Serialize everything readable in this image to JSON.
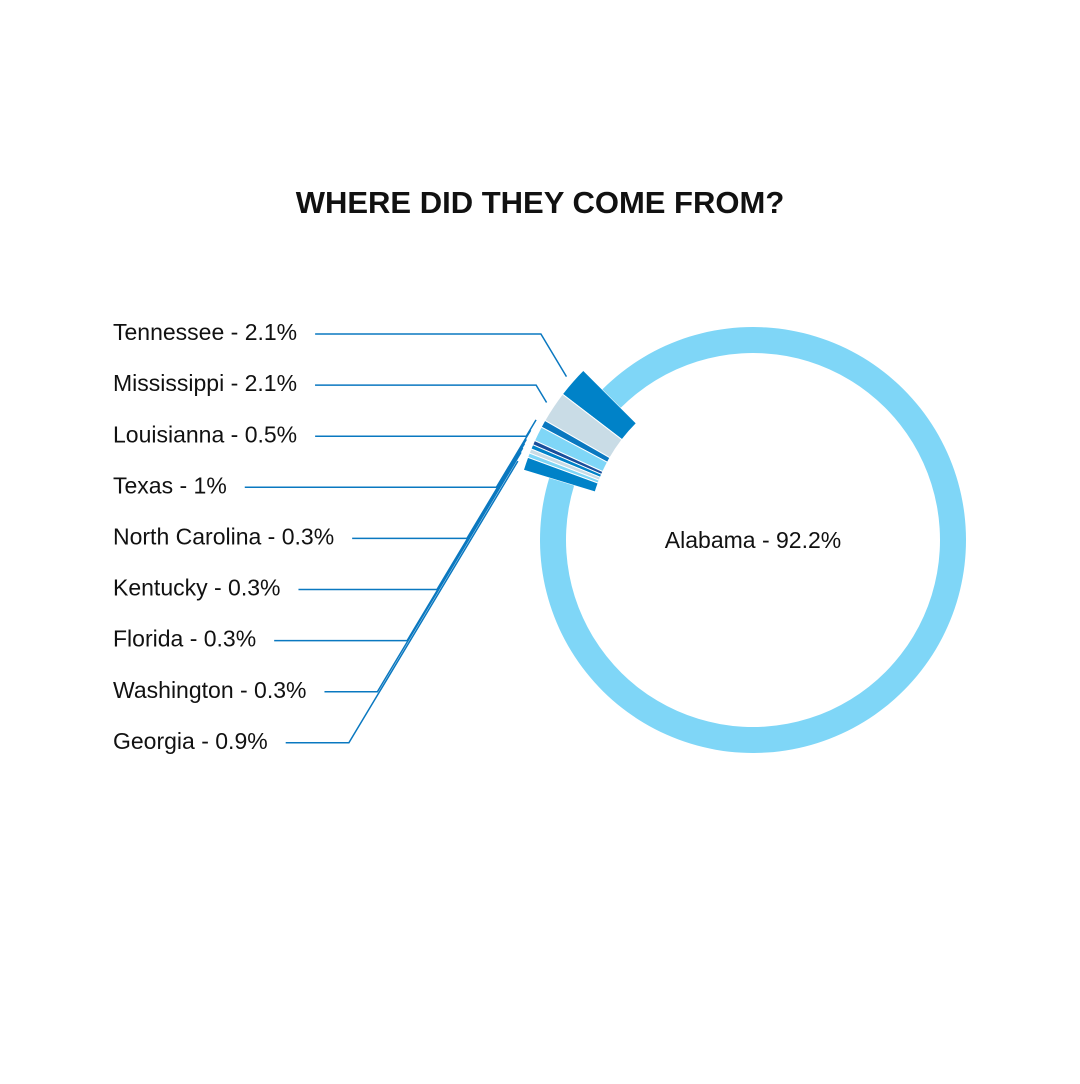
{
  "chart_data": {
    "type": "donut",
    "title": "WHERE DID THEY COME FROM?",
    "categories": [
      "Tennessee - 2.1%",
      "Mississippi - 2.1%",
      "Louisianna - 0.5%",
      "Texas - 1%",
      "North Carolina - 0.3%",
      "Kentucky - 0.3%",
      "Florida - 0.3%",
      "Washington - 0.3%",
      "Georgia - 0.9%",
      "Alabama - 92.2%"
    ],
    "values": [
      2.1,
      2.1,
      0.5,
      1,
      0.3,
      0.3,
      0.3,
      0.3,
      0.9,
      92.2
    ],
    "colors": [
      "#0082c8",
      "#c9dce6",
      "#0a78c0",
      "#7fd6f7",
      "#1a4f9c",
      "#0082c8",
      "#c9dce6",
      "#7fd6f7",
      "#0082c8",
      "#7fd6f7"
    ]
  }
}
